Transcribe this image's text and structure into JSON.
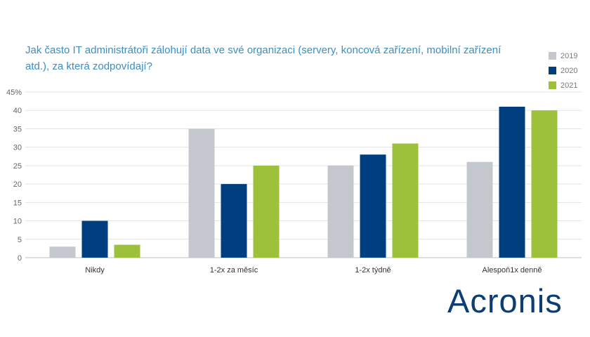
{
  "brand": "Acronis",
  "colors": {
    "y2019": "#c4c8ce",
    "y2020": "#003f7f",
    "y2021": "#9dc13b"
  },
  "chart_data": {
    "type": "bar",
    "title": "Jak často IT administrátoři zálohují data ve své organizaci (servery, koncová zařízení, mobilní zařízení atd.), za která zodpovídají?",
    "categories": [
      "Nikdy",
      "1-2x za měsíc",
      "1-2x týdně",
      "Alespoň1x denně"
    ],
    "series": [
      {
        "name": "2019",
        "values": [
          3,
          35,
          25,
          26
        ]
      },
      {
        "name": "2020",
        "values": [
          10,
          20,
          28,
          41
        ]
      },
      {
        "name": "2021",
        "values": [
          3.5,
          25,
          31,
          40
        ]
      }
    ],
    "ylim": [
      0,
      45
    ],
    "yticks": [
      "0",
      "5",
      "10",
      "15",
      "20",
      "25",
      "30",
      "35",
      "40",
      "45%"
    ],
    "xlabel": "",
    "ylabel": "",
    "grid": true,
    "legend": "top-right"
  }
}
